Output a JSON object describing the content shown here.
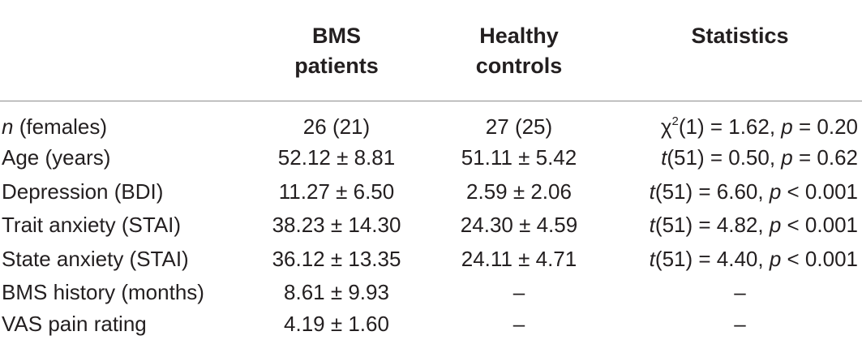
{
  "header": {
    "bms_line1": "BMS",
    "bms_line2": "patients",
    "hc_line1": "Healthy",
    "hc_line2": "controls",
    "statistics": "Statistics"
  },
  "rows": [
    {
      "label_italic": "n",
      "label_rest": " (females)",
      "bms": "26 (21)",
      "hc": "27 (25)",
      "stat_pre": "χ",
      "stat_sup": "2",
      "stat_mid": "(1) = 1.62, ",
      "stat_p": "p",
      "stat_post": " = 0.20"
    },
    {
      "label": "Age (years)",
      "bms": "52.12 ± 8.81",
      "hc": "51.11 ± 5.42",
      "stat_t": "t",
      "stat_mid": "(51) = 0.50, ",
      "stat_p": "p",
      "stat_post": " = 0.62"
    },
    {
      "label": "Depression (BDI)",
      "bms": "11.27 ± 6.50",
      "hc": "2.59 ± 2.06",
      "stat_t": "t",
      "stat_mid": "(51) = 6.60, ",
      "stat_p": "p",
      "stat_post": " < 0.001"
    },
    {
      "label": "Trait anxiety (STAI)",
      "bms": "38.23 ± 14.30",
      "hc": "24.30 ± 4.59",
      "stat_t": "t",
      "stat_mid": "(51) = 4.82, ",
      "stat_p": "p",
      "stat_post": " < 0.001"
    },
    {
      "label": "State anxiety (STAI)",
      "bms": "36.12 ± 13.35",
      "hc": "24.11 ± 4.71",
      "stat_t": "t",
      "stat_mid": "(51) = 4.40, ",
      "stat_p": "p",
      "stat_post": " < 0.001"
    },
    {
      "label": "BMS history (months)",
      "bms": "8.61 ± 9.93",
      "hc": "–",
      "stat": "–"
    },
    {
      "label": "VAS pain rating",
      "bms": "4.19 ± 1.60",
      "hc": "–",
      "stat": "–"
    }
  ]
}
